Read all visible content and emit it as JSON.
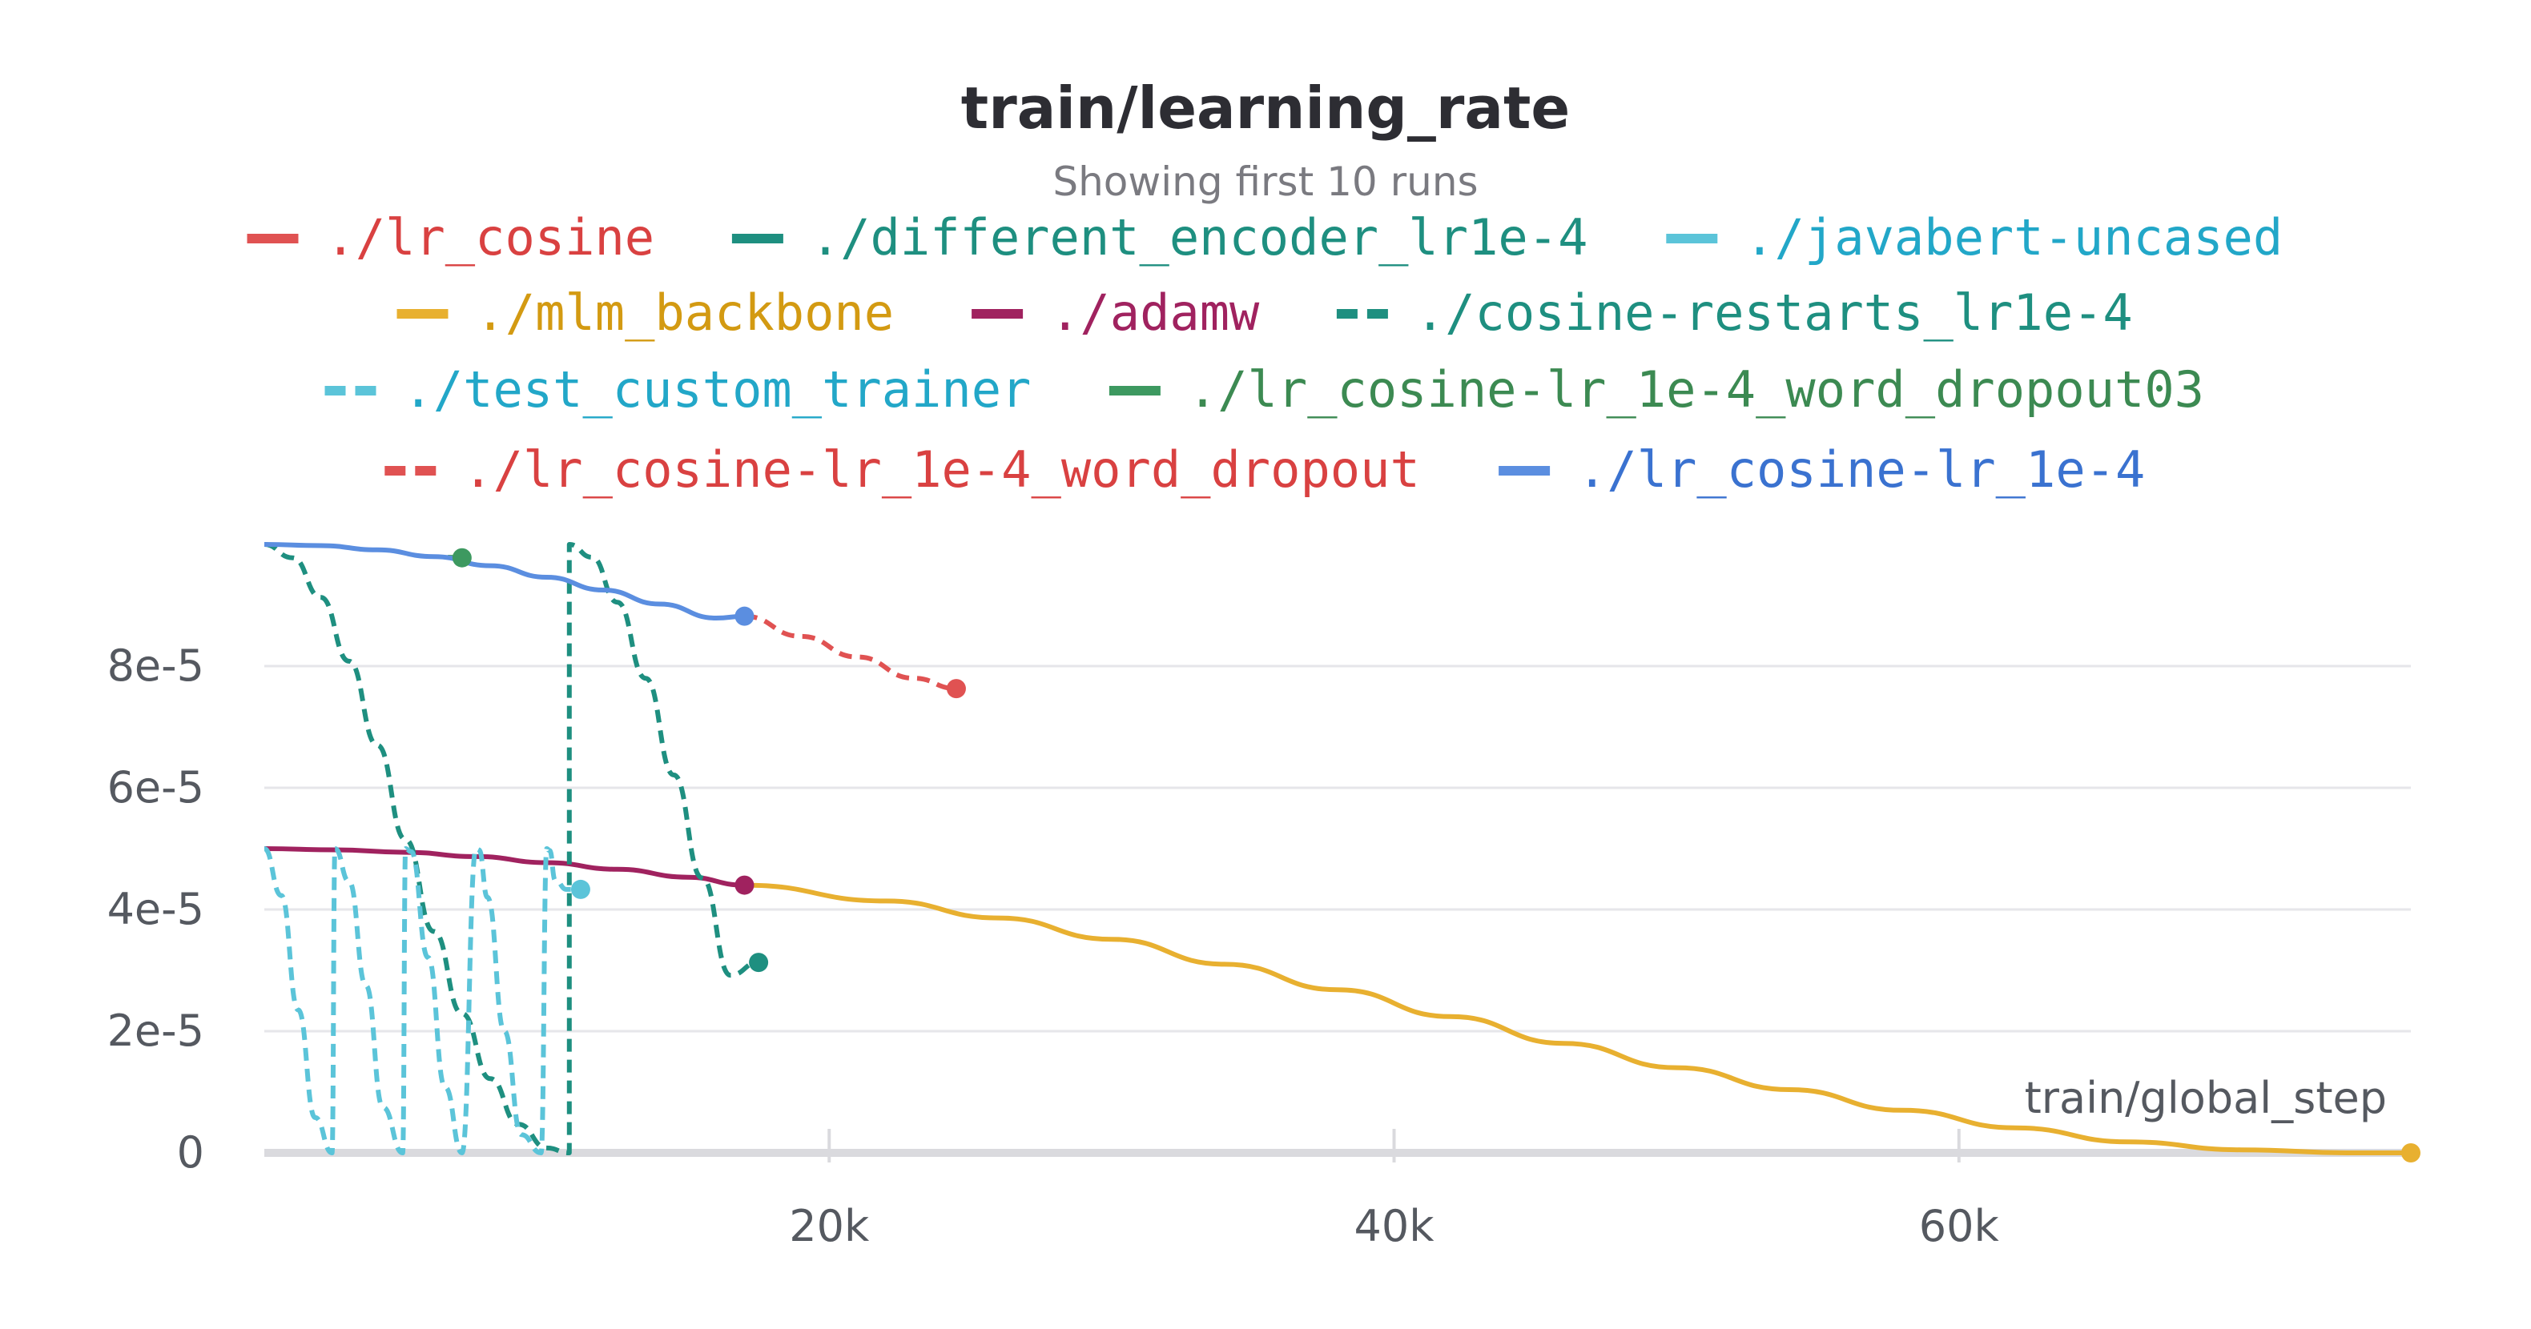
{
  "chart_data": {
    "type": "line",
    "title": "train/learning_rate",
    "subtitle": "Showing first 10 runs",
    "xlabel": "train/global_step",
    "ylabel": "",
    "xlim": [
      0,
      76000
    ],
    "ylim": [
      0,
      0.0001
    ],
    "x_ticks": [
      {
        "value": 20000,
        "label": "20k"
      },
      {
        "value": 40000,
        "label": "40k"
      },
      {
        "value": 60000,
        "label": "60k"
      }
    ],
    "y_ticks": [
      {
        "value": 0,
        "label": "0"
      },
      {
        "value": 2e-05,
        "label": "2e-5"
      },
      {
        "value": 4e-05,
        "label": "4e-5"
      },
      {
        "value": 6e-05,
        "label": "6e-5"
      },
      {
        "value": 8e-05,
        "label": "8e-5"
      }
    ],
    "grid": true,
    "legend_position": "top",
    "series": [
      {
        "name": "./lr_cosine",
        "color": "#e05252",
        "dash": false,
        "legend_text_color": "#d94141",
        "x": [],
        "y": []
      },
      {
        "name": "./different_encoder_lr1e-4",
        "color": "#1e8f80",
        "dash": false,
        "legend_text_color": "#1e8f80",
        "x": [],
        "y": []
      },
      {
        "name": "./javabert-uncased",
        "color": "#5bc4d9",
        "dash": false,
        "legend_text_color": "#22a7c8",
        "x": [],
        "y": []
      },
      {
        "name": "./mlm_backbone",
        "color": "#e8b030",
        "dash": false,
        "legend_text_color": "#d39a12",
        "x": [
          17000,
          22000,
          26000,
          30000,
          34000,
          38000,
          42000,
          46000,
          50000,
          54000,
          58000,
          62000,
          66000,
          70000,
          74000,
          76000
        ],
        "y": [
          4.4e-05,
          4.14e-05,
          3.86e-05,
          3.51e-05,
          3.1e-05,
          2.68e-05,
          2.24e-05,
          1.8e-05,
          1.4e-05,
          1.04e-05,
          7e-06,
          4.1e-06,
          1.8e-06,
          5e-07,
          0.0,
          0.0
        ],
        "end_marker": true
      },
      {
        "name": "./adamw",
        "color": "#a0225f",
        "dash": false,
        "legend_text_color": "#a0225f",
        "x": [
          0,
          2500,
          5000,
          7500,
          10000,
          12500,
          15000,
          17000
        ],
        "y": [
          5e-05,
          4.98e-05,
          4.94e-05,
          4.87e-05,
          4.77e-05,
          4.66e-05,
          4.53e-05,
          4.4e-05
        ],
        "end_marker": true
      },
      {
        "name": "./cosine-restarts_lr1e-4",
        "color": "#1e8f80",
        "dash": true,
        "legend_text_color": "#1e8f80",
        "x": [
          0,
          1000,
          2000,
          3000,
          4000,
          5000,
          6000,
          7000,
          8000,
          9000,
          10000,
          10800,
          10800,
          11600,
          12500,
          13500,
          14500,
          15500,
          16500,
          17500
        ],
        "y": [
          0.0001,
          9.78e-05,
          9.13e-05,
          8.08e-05,
          6.7e-05,
          5.15e-05,
          3.64e-05,
          2.29e-05,
          1.22e-05,
          4.7e-06,
          8e-07,
          0,
          0.0001,
          9.79e-05,
          9.05e-05,
          7.8e-05,
          6.21e-05,
          4.52e-05,
          2.92e-05,
          3.13e-05
        ],
        "end_marker": true
      },
      {
        "name": "./test_custom_trainer",
        "color": "#5bc4d9",
        "dash": true,
        "legend_text_color": "#22a7c8",
        "x": [
          0,
          600,
          1200,
          1800,
          2400,
          2500,
          3000,
          3600,
          4200,
          4900,
          5000,
          5200,
          5800,
          6400,
          7000,
          7500,
          7600,
          7900,
          8500,
          9100,
          9800,
          10000,
          10100,
          10300,
          10700,
          11200
        ],
        "y": [
          5e-05,
          4.23e-05,
          2.35e-05,
          5.8e-06,
          0,
          5e-05,
          4.46e-05,
          2.75e-05,
          7.5e-06,
          0,
          5e-05,
          4.95e-05,
          3.21e-05,
          1.08e-05,
          0,
          5e-05,
          4.98e-05,
          4.2e-05,
          2e-05,
          3e-06,
          0,
          5e-05,
          4.97e-05,
          4.48e-05,
          4.33e-05,
          4.33e-05
        ],
        "end_marker": true
      },
      {
        "name": "./lr_cosine-lr_1e-4_word_dropout03",
        "color": "#3d9960",
        "dash": false,
        "legend_text_color": "#3c8a52",
        "x": [
          6500,
          7000
        ],
        "y": [
          9.79e-05,
          9.78e-05
        ],
        "end_marker": true
      },
      {
        "name": "./lr_cosine-lr_1e-4_word_dropout",
        "color": "#e05252",
        "dash": true,
        "legend_text_color": "#d94141",
        "x": [
          17000,
          19000,
          21000,
          23000,
          24500
        ],
        "y": [
          8.82e-05,
          8.49e-05,
          8.15e-05,
          7.8e-05,
          7.63e-05
        ],
        "end_marker": true
      },
      {
        "name": "./lr_cosine-lr_1e-4",
        "color": "#5b8ee0",
        "dash": false,
        "legend_text_color": "#3a72d0",
        "x": [
          0,
          2000,
          4000,
          6000,
          8000,
          10000,
          12000,
          14000,
          16000,
          17000
        ],
        "y": [
          0.0001,
          9.98e-05,
          9.91e-05,
          9.8e-05,
          9.65e-05,
          9.46e-05,
          9.25e-05,
          9.02e-05,
          8.79e-05,
          8.82e-05
        ],
        "end_marker": true
      }
    ]
  }
}
